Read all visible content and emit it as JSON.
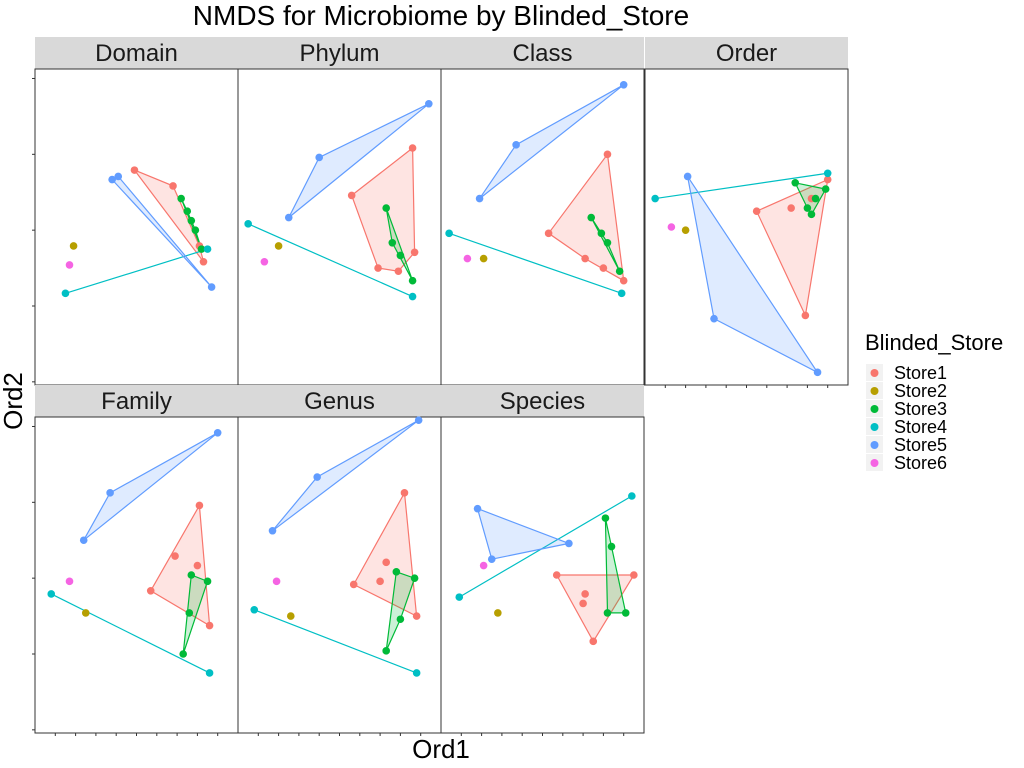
{
  "chart_data": {
    "type": "scatter",
    "title": "NMDS for Microbiome by Blinded_Store",
    "xlabel": "Ord1",
    "ylabel": "Ord2",
    "xlim": [
      0,
      100
    ],
    "ylim": [
      0,
      100
    ],
    "x_tick_values": [
      10,
      20,
      30,
      40,
      50,
      60,
      70,
      80,
      90
    ],
    "y_tick_values": [
      1,
      25,
      49,
      73,
      97
    ],
    "tick_labels_shown": false,
    "grid": false,
    "legend": {
      "title": "Blinded_Store",
      "position": "right",
      "entries": [
        {
          "name": "Store1",
          "color": "#F8766D"
        },
        {
          "name": "Store2",
          "color": "#B79F00"
        },
        {
          "name": "Store3",
          "color": "#00BA38"
        },
        {
          "name": "Store4",
          "color": "#00BFC4"
        },
        {
          "name": "Store5",
          "color": "#619CFF"
        },
        {
          "name": "Store6",
          "color": "#F564E3"
        }
      ]
    },
    "panels": [
      {
        "name": "Domain",
        "series": [
          {
            "store": "Store1",
            "points": [
              [
                49,
                68
              ],
              [
                68,
                63
              ],
              [
                81,
                44
              ],
              [
                83,
                39
              ]
            ]
          },
          {
            "store": "Store2",
            "points": [
              [
                19,
                44
              ]
            ]
          },
          {
            "store": "Store3",
            "points": [
              [
                72,
                59
              ],
              [
                75,
                55
              ],
              [
                77,
                52
              ],
              [
                79,
                49
              ],
              [
                82,
                43
              ]
            ]
          },
          {
            "store": "Store4",
            "points": [
              [
                15,
                29
              ],
              [
                85,
                43
              ]
            ]
          },
          {
            "store": "Store5",
            "points": [
              [
                38,
                65
              ],
              [
                41,
                66
              ],
              [
                87,
                31
              ]
            ]
          },
          {
            "store": "Store6",
            "points": [
              [
                17,
                38
              ]
            ]
          }
        ]
      },
      {
        "name": "Phylum",
        "series": [
          {
            "store": "Store1",
            "points": [
              [
                56,
                60
              ],
              [
                86,
                75
              ],
              [
                87,
                42
              ],
              [
                69,
                37
              ],
              [
                79,
                36
              ]
            ]
          },
          {
            "store": "Store2",
            "points": [
              [
                20,
                44
              ]
            ]
          },
          {
            "store": "Store3",
            "points": [
              [
                73,
                56
              ],
              [
                76,
                45
              ],
              [
                80,
                41
              ],
              [
                86,
                33
              ]
            ]
          },
          {
            "store": "Store4",
            "points": [
              [
                5,
                51
              ],
              [
                86,
                28
              ]
            ]
          },
          {
            "store": "Store5",
            "points": [
              [
                25,
                53
              ],
              [
                40,
                72
              ],
              [
                94,
                89
              ]
            ]
          },
          {
            "store": "Store6",
            "points": [
              [
                13,
                39
              ]
            ]
          }
        ]
      },
      {
        "name": "Class",
        "series": [
          {
            "store": "Store1",
            "points": [
              [
                53,
                48
              ],
              [
                82,
                73
              ],
              [
                90,
                33
              ],
              [
                71,
                40
              ],
              [
                80,
                37
              ]
            ]
          },
          {
            "store": "Store2",
            "points": [
              [
                21,
                40
              ]
            ]
          },
          {
            "store": "Store3",
            "points": [
              [
                74,
                53
              ],
              [
                79,
                48
              ],
              [
                82,
                45
              ],
              [
                88,
                36
              ]
            ]
          },
          {
            "store": "Store4",
            "points": [
              [
                4,
                48
              ],
              [
                89,
                29
              ]
            ]
          },
          {
            "store": "Store5",
            "points": [
              [
                19,
                59
              ],
              [
                37,
                76
              ],
              [
                90,
                95
              ]
            ]
          },
          {
            "store": "Store6",
            "points": [
              [
                13,
                40
              ]
            ]
          }
        ]
      },
      {
        "name": "Order",
        "series": [
          {
            "store": "Store1",
            "points": [
              [
                55,
                55
              ],
              [
                90,
                65
              ],
              [
                79,
                22
              ],
              [
                72,
                56
              ],
              [
                82,
                59
              ]
            ]
          },
          {
            "store": "Store2",
            "points": [
              [
                20,
                49
              ]
            ]
          },
          {
            "store": "Store3",
            "points": [
              [
                74,
                64
              ],
              [
                89,
                62
              ],
              [
                80,
                56
              ],
              [
                82,
                54
              ],
              [
                84,
                59
              ]
            ]
          },
          {
            "store": "Store4",
            "points": [
              [
                5,
                59
              ],
              [
                90,
                67
              ]
            ]
          },
          {
            "store": "Store5",
            "points": [
              [
                21,
                66
              ],
              [
                34,
                21
              ],
              [
                85,
                4
              ]
            ]
          },
          {
            "store": "Store6",
            "points": [
              [
                13,
                50
              ]
            ]
          }
        ]
      },
      {
        "name": "Family",
        "series": [
          {
            "store": "Store1",
            "points": [
              [
                57,
                45
              ],
              [
                81,
                72
              ],
              [
                86,
                34
              ],
              [
                69,
                56
              ],
              [
                80,
                53
              ]
            ]
          },
          {
            "store": "Store2",
            "points": [
              [
                25,
                38
              ]
            ]
          },
          {
            "store": "Store3",
            "points": [
              [
                77,
                50
              ],
              [
                85,
                48
              ],
              [
                76,
                38
              ],
              [
                73,
                25
              ]
            ]
          },
          {
            "store": "Store4",
            "points": [
              [
                8,
                44
              ],
              [
                86,
                19
              ]
            ]
          },
          {
            "store": "Store5",
            "points": [
              [
                24,
                61
              ],
              [
                37,
                76
              ],
              [
                90,
                95
              ]
            ]
          },
          {
            "store": "Store6",
            "points": [
              [
                17,
                48
              ]
            ]
          }
        ]
      },
      {
        "name": "Genus",
        "series": [
          {
            "store": "Store1",
            "points": [
              [
                57,
                47
              ],
              [
                82,
                76
              ],
              [
                88,
                37
              ],
              [
                73,
                54
              ],
              [
                70,
                48
              ]
            ]
          },
          {
            "store": "Store3",
            "points": [
              [
                78,
                51
              ],
              [
                87,
                49
              ],
              [
                80,
                36
              ],
              [
                73,
                26
              ]
            ]
          },
          {
            "store": "Store2",
            "points": [
              [
                26,
                37
              ]
            ]
          },
          {
            "store": "Store4",
            "points": [
              [
                8,
                39
              ],
              [
                88,
                19
              ]
            ]
          },
          {
            "store": "Store5",
            "points": [
              [
                17,
                64
              ],
              [
                39,
                81
              ],
              [
                89,
                99
              ]
            ]
          },
          {
            "store": "Store6",
            "points": [
              [
                19,
                48
              ]
            ]
          }
        ]
      },
      {
        "name": "Species",
        "series": [
          {
            "store": "Store1",
            "points": [
              [
                57,
                50
              ],
              [
                95,
                50
              ],
              [
                75,
                29
              ],
              [
                71,
                44
              ],
              [
                70,
                41
              ]
            ]
          },
          {
            "store": "Store2",
            "points": [
              [
                28,
                38
              ]
            ]
          },
          {
            "store": "Store3",
            "points": [
              [
                81,
                68
              ],
              [
                84,
                59
              ],
              [
                91,
                38
              ],
              [
                82,
                38
              ]
            ]
          },
          {
            "store": "Store4",
            "points": [
              [
                9,
                43
              ],
              [
                94,
                75
              ]
            ]
          },
          {
            "store": "Store5",
            "points": [
              [
                18,
                71
              ],
              [
                25,
                55
              ],
              [
                63,
                60
              ]
            ]
          },
          {
            "store": "Store6",
            "points": [
              [
                21,
                53
              ]
            ]
          }
        ]
      }
    ]
  }
}
